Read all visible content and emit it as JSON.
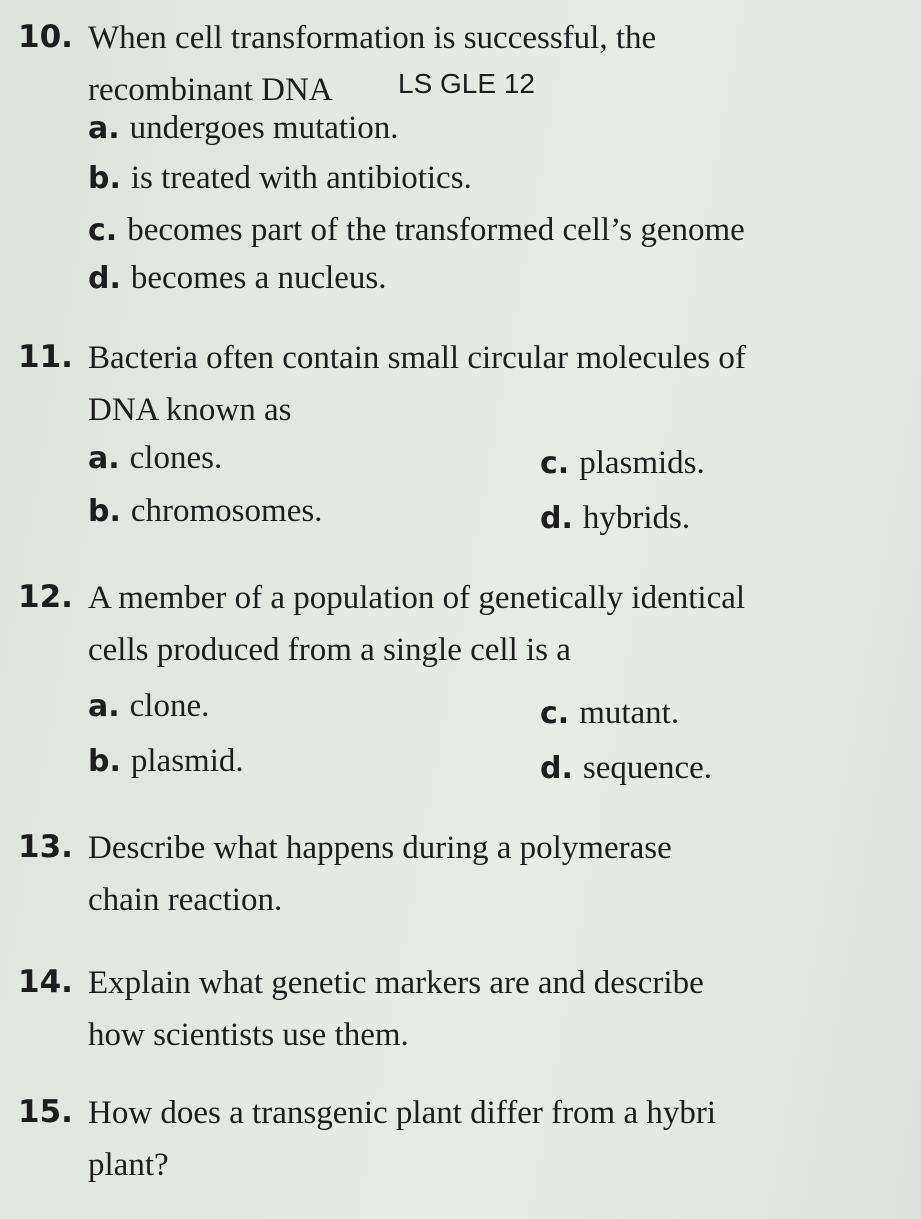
{
  "note": "LS GLE 12",
  "questions": [
    {
      "number": "10.",
      "lines": [
        "When cell transformation is successful, the",
        "recombinant DNA"
      ],
      "options": [
        {
          "letter": "a.",
          "text": "undergoes mutation."
        },
        {
          "letter": "b.",
          "text": "is treated with antibiotics."
        },
        {
          "letter": "c.",
          "text": "becomes part of the transformed cell’s genome"
        },
        {
          "letter": "d.",
          "text": "becomes a nucleus."
        }
      ]
    },
    {
      "number": "11.",
      "lines": [
        "Bacteria often contain small circular molecules of",
        "DNA known as"
      ],
      "options": [
        {
          "letter": "a.",
          "text": "clones."
        },
        {
          "letter": "b.",
          "text": "chromosomes."
        },
        {
          "letter": "c.",
          "text": "plasmids."
        },
        {
          "letter": "d.",
          "text": "hybrids."
        }
      ]
    },
    {
      "number": "12.",
      "lines": [
        "A member of a population of genetically identical",
        "cells produced from a single cell is a"
      ],
      "options": [
        {
          "letter": "a.",
          "text": "clone."
        },
        {
          "letter": "b.",
          "text": "plasmid."
        },
        {
          "letter": "c.",
          "text": "mutant."
        },
        {
          "letter": "d.",
          "text": "sequence."
        }
      ]
    },
    {
      "number": "13.",
      "lines": [
        "Describe what happens during a polymerase",
        "chain reaction."
      ],
      "options": []
    },
    {
      "number": "14.",
      "lines": [
        "Explain what genetic markers are and describe",
        "how scientists use them."
      ],
      "options": []
    },
    {
      "number": "15.",
      "lines": [
        "How does a transgenic plant differ from a hybri",
        "plant?"
      ],
      "options": []
    }
  ]
}
